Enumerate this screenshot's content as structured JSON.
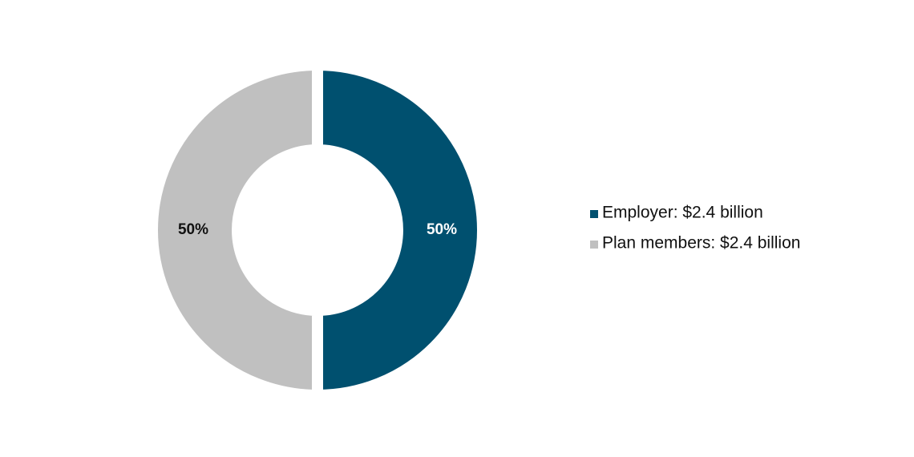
{
  "chart_data": {
    "type": "donut",
    "categories": [
      "Employer: $2.4 billion",
      "Plan members: $2.4 billion"
    ],
    "values": [
      50,
      50
    ],
    "value_labels": [
      "50%",
      "50%"
    ],
    "colors": [
      "#00506f",
      "#c0c0c0"
    ],
    "legend": "right"
  }
}
